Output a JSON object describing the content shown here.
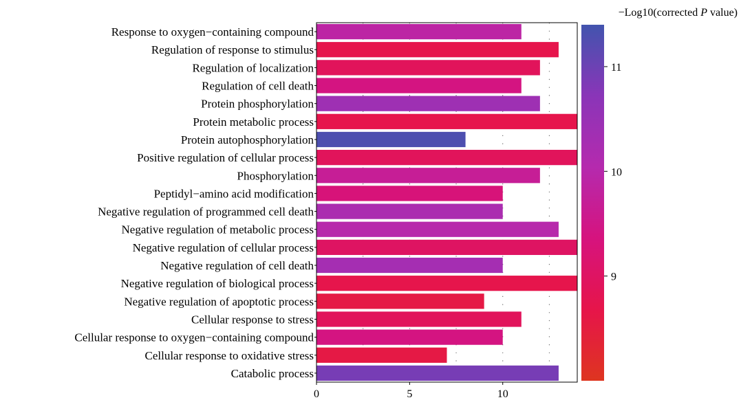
{
  "chart_data": {
    "type": "bar",
    "orientation": "horizontal",
    "categories": [
      "Response to oxygen−containing compound",
      "Regulation of response to stimulus",
      "Regulation of localization",
      "Regulation of cell death",
      "Protein phosphorylation",
      "Protein metabolic process",
      "Protein autophosphorylation",
      "Positive regulation of cellular process",
      "Phosphorylation",
      "Peptidyl−amino acid modification",
      "Negative regulation of programmed cell death",
      "Negative regulation of metabolic process",
      "Negative regulation of cellular process",
      "Negative regulation of cell death",
      "Negative regulation of biological process",
      "Negative regulation of apoptotic process",
      "Cellular response to stress",
      "Cellular response to oxygen−containing compound",
      "Cellular response to oxidative stress",
      "Catabolic process"
    ],
    "values": [
      11,
      13,
      12,
      11,
      12,
      14,
      8,
      14,
      12,
      10,
      10,
      13,
      14,
      10,
      14,
      9,
      11,
      10,
      7,
      13
    ],
    "color_values": [
      9.9,
      8.7,
      8.9,
      9.4,
      10.4,
      8.7,
      11.3,
      8.9,
      9.7,
      9.3,
      10.2,
      10.0,
      9.0,
      10.3,
      8.7,
      8.6,
      8.9,
      9.4,
      8.6,
      10.9
    ],
    "xlim": [
      0,
      14
    ],
    "xticks": [
      "0",
      "5",
      "10"
    ],
    "xtick_values": [
      0,
      5,
      10
    ],
    "xlabel": "",
    "ylabel": "",
    "grid": "dotted vertical",
    "legend": {
      "title_prefix": "−Log10(corrected ",
      "title_italic": "P",
      "title_suffix": " value)",
      "placement": "right",
      "range": [
        8.0,
        11.4
      ],
      "ticks": [
        "9",
        "10",
        "11"
      ],
      "tick_values": [
        9,
        10,
        11
      ],
      "colors": [
        "#DE3520",
        "#E6154A",
        "#D6137E",
        "#B52AAE",
        "#8A35B8",
        "#4254AE"
      ]
    }
  }
}
